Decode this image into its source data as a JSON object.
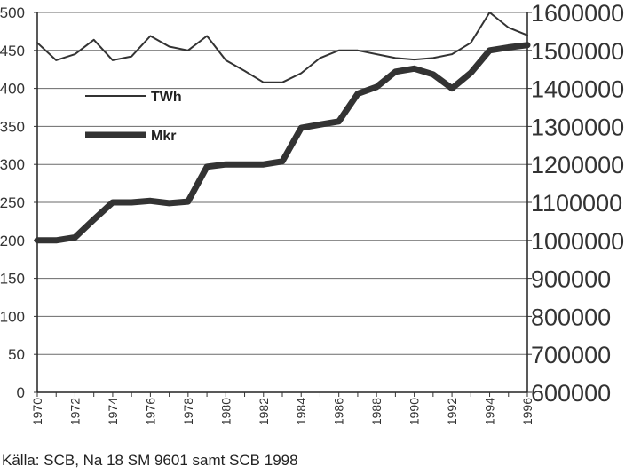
{
  "chart_data": {
    "type": "line",
    "x": [
      1970,
      1971,
      1972,
      1973,
      1974,
      1975,
      1976,
      1977,
      1978,
      1979,
      1980,
      1981,
      1982,
      1983,
      1984,
      1985,
      1986,
      1987,
      1988,
      1989,
      1990,
      1991,
      1992,
      1993,
      1994,
      1995,
      1996
    ],
    "x_tick_labels": [
      "1970",
      "1972",
      "1974",
      "1976",
      "1978",
      "1980",
      "1982",
      "1984",
      "1986",
      "1988",
      "1990",
      "1992",
      "1994",
      "1996"
    ],
    "left_axis": {
      "ylim": [
        0,
        500
      ],
      "ticks": [
        "0",
        "50",
        "100",
        "150",
        "200",
        "250",
        "300",
        "350",
        "400",
        "450",
        "500"
      ]
    },
    "right_axis": {
      "ylim": [
        600000,
        1600000
      ],
      "ticks": [
        "600000",
        "700000",
        "800000",
        "900000",
        "1000000",
        "1100000",
        "1200000",
        "1300000",
        "1400000",
        "1500000",
        "1600000"
      ]
    },
    "series": [
      {
        "name": "TWh",
        "axis": "left",
        "line_width": "thin",
        "values": [
          460,
          437,
          445,
          464,
          437,
          442,
          469,
          455,
          450,
          469,
          437,
          423,
          408,
          408,
          420,
          440,
          450,
          450,
          445,
          440,
          438,
          440,
          445,
          460,
          500,
          480,
          470
        ]
      },
      {
        "name": "Mkr",
        "axis": "right",
        "line_width": "thick",
        "values": [
          1000000,
          1000000,
          1008000,
          1055000,
          1100000,
          1100000,
          1104000,
          1098000,
          1102000,
          1194000,
          1200000,
          1200000,
          1200000,
          1208000,
          1296000,
          1305000,
          1313000,
          1386000,
          1404000,
          1444000,
          1452000,
          1437000,
          1400000,
          1441000,
          1500000,
          1508000,
          1514000
        ]
      }
    ],
    "legend": {
      "placement": "upper-left",
      "items": [
        "TWh",
        "Mkr"
      ]
    }
  },
  "source_note": "Källa: SCB, Na 18 SM 9601 samt SCB 1998"
}
